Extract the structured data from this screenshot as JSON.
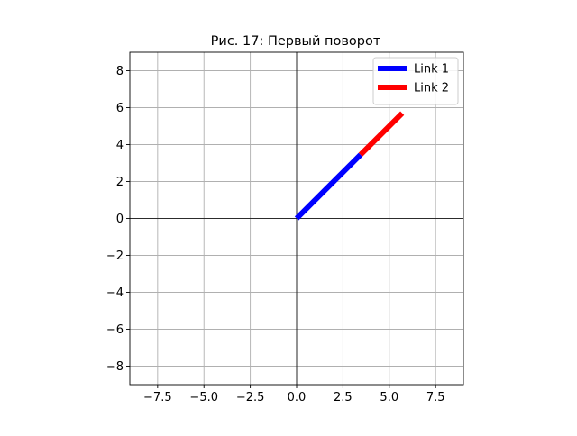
{
  "colors": {
    "link1": "#0000ff",
    "link2": "#ff0000",
    "grid": "#b0b0b0",
    "axes_zero": "#000000",
    "frame": "#000000",
    "background": "#ffffff"
  },
  "chart_data": {
    "type": "line",
    "title": "Рис. 17: Первый поворот",
    "xlabel": "",
    "ylabel": "",
    "xlim": [
      -9,
      9
    ],
    "ylim": [
      -9,
      9
    ],
    "xticks": [
      -7.5,
      -5.0,
      -2.5,
      0.0,
      2.5,
      5.0,
      7.5
    ],
    "xtick_labels": [
      "−7.5",
      "−5.0",
      "−2.5",
      "0.0",
      "2.5",
      "5.0",
      "7.5"
    ],
    "yticks": [
      -8,
      -6,
      -4,
      -2,
      0,
      2,
      4,
      6,
      8
    ],
    "ytick_labels": [
      "−8",
      "−6",
      "−4",
      "−2",
      "0",
      "2",
      "4",
      "6",
      "8"
    ],
    "grid": true,
    "zero_lines": true,
    "aspect": "equal",
    "legend": {
      "position": "top-right",
      "entries": [
        "Link 1",
        "Link 2"
      ]
    },
    "series": [
      {
        "name": "Link 1",
        "color": "#0000ff",
        "x": [
          0,
          3.45
        ],
        "y": [
          0,
          3.45
        ]
      },
      {
        "name": "Link 2",
        "color": "#ff0000",
        "x": [
          3.45,
          5.7
        ],
        "y": [
          3.45,
          5.7
        ]
      }
    ]
  }
}
